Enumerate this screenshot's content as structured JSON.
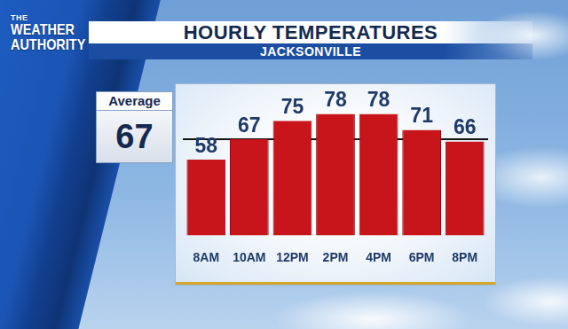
{
  "chart_data": {
    "type": "bar",
    "logo": [
      "THE",
      "WEATHER",
      "AUTHORITY"
    ],
    "title": "HOURLY TEMPERATURES",
    "subtitle": "JACKSONVILLE",
    "average": {
      "label": "Average",
      "value": 67
    },
    "categories": [
      "8AM",
      "10AM",
      "12PM",
      "2PM",
      "4PM",
      "6PM",
      "8PM"
    ],
    "values": [
      58,
      67,
      75,
      78,
      78,
      71,
      66
    ],
    "color": "#c8141b",
    "ylim": [
      25,
      91
    ],
    "grid": false,
    "data_labels": true,
    "tick_labels": "x"
  }
}
